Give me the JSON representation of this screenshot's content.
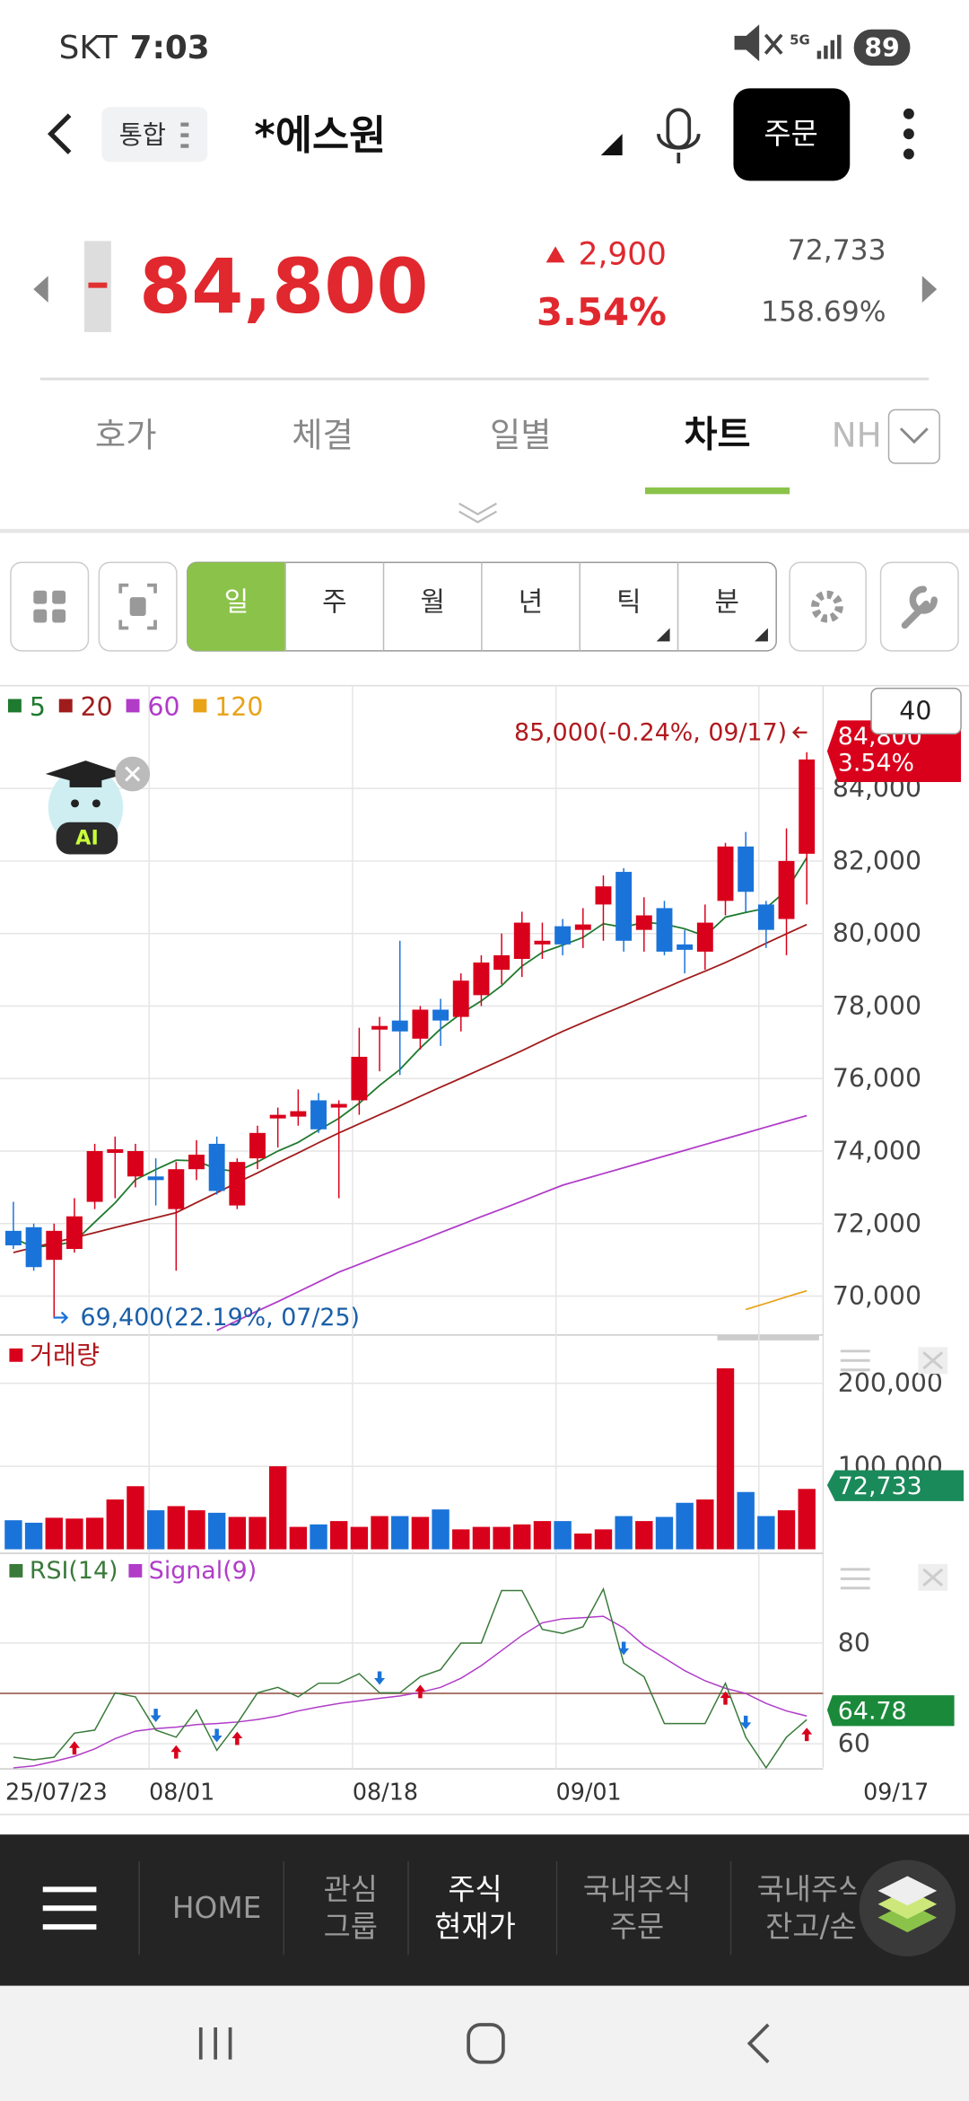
{
  "status_bar": {
    "carrier": "SKT",
    "time": "7:03",
    "network": "5G",
    "battery": "89"
  },
  "header": {
    "badge": "통합",
    "name": "*에스원",
    "order_button": "주문"
  },
  "price": {
    "current": "84,800",
    "change": "2,900",
    "change_pct": "3.54%",
    "volume": "72,733",
    "volume_ratio": "158.69%"
  },
  "tabs": [
    "호가",
    "체결",
    "일별",
    "차트",
    "NH"
  ],
  "periods": [
    "일",
    "주",
    "월",
    "년",
    "틱",
    "분"
  ],
  "chart_header": {
    "count": "40",
    "ma_legend": [
      "5",
      "20",
      "60",
      "120"
    ],
    "max_note": "85,000(-0.24%, 09/17)",
    "min_note": "69,400(22.19%, 07/25)",
    "ai_badge": "AI"
  },
  "price_chart": {
    "type": "candlestick",
    "ylim": [
      69000,
      86800
    ],
    "yticks": [
      {
        "value": 70000,
        "label": "70,000"
      },
      {
        "value": 72000,
        "label": "72,000"
      },
      {
        "value": 74000,
        "label": "74,000"
      },
      {
        "value": 76000,
        "label": "76,000"
      },
      {
        "value": 78000,
        "label": "78,000"
      },
      {
        "value": 80000,
        "label": "80,000"
      },
      {
        "value": 82000,
        "label": "82,000"
      },
      {
        "value": 84000,
        "label": "84,000"
      }
    ],
    "up_color": "#d9001b",
    "down_color": "#1a73d9",
    "open": [
      71800,
      71900,
      71000,
      71300,
      72600,
      73950,
      73300,
      73300,
      72400,
      73500,
      74200,
      72500,
      73800,
      74900,
      74950,
      75400,
      75200,
      75400,
      77350,
      77600,
      77100,
      77900,
      77700,
      78300,
      79000,
      79300,
      79700,
      80200,
      80100,
      80800,
      81700,
      80100,
      80700,
      79700,
      79500,
      80900,
      82400,
      80800,
      80400,
      82200
    ],
    "high": [
      72600,
      72000,
      72000,
      72700,
      74200,
      74400,
      74200,
      73800,
      73700,
      74300,
      74400,
      73800,
      74700,
      75200,
      75700,
      75600,
      75400,
      77400,
      77700,
      79800,
      78000,
      78200,
      78900,
      79400,
      80000,
      80600,
      80300,
      80400,
      80700,
      81600,
      81800,
      81000,
      80900,
      80100,
      80800,
      82500,
      82800,
      80900,
      82900,
      85000
    ],
    "low": [
      71300,
      70700,
      69400,
      71200,
      72400,
      72700,
      73000,
      72500,
      70700,
      73200,
      72800,
      72400,
      73500,
      74100,
      74700,
      74500,
      72700,
      75000,
      76200,
      76100,
      76800,
      76900,
      77300,
      78000,
      78600,
      78800,
      79300,
      79400,
      79600,
      79800,
      79500,
      79500,
      79400,
      78900,
      79000,
      80500,
      80600,
      79600,
      79400,
      80800
    ],
    "close": [
      71400,
      70800,
      71800,
      72200,
      74000,
      74050,
      74000,
      73200,
      73500,
      73900,
      72900,
      73700,
      74500,
      75000,
      75100,
      74600,
      75300,
      76600,
      77450,
      77300,
      77900,
      77600,
      78700,
      79200,
      79400,
      80300,
      79800,
      79700,
      80250,
      81300,
      79800,
      80500,
      79500,
      79550,
      80300,
      82400,
      81150,
      80100,
      82000,
      84800
    ],
    "ma": [
      {
        "name": "5",
        "color": "#1e7a2e",
        "values": [
          71600,
          71350,
          71400,
          71500,
          72040,
          72570,
          73210,
          73490,
          73750,
          73730,
          73500,
          73440,
          73700,
          74000,
          74240,
          74580,
          74900,
          75320,
          75810,
          76250,
          76840,
          77370,
          77790,
          78140,
          78560,
          79100,
          79480,
          79680,
          79890,
          80270,
          80170,
          80310,
          80260,
          80130,
          79930,
          80450,
          80580,
          80700,
          81190,
          82090
        ]
      },
      {
        "name": "20",
        "color": "#a01c1c",
        "values": [
          71200,
          71340,
          71480,
          71610,
          71750,
          71890,
          72030,
          72160,
          72300,
          72580,
          72850,
          73130,
          73400,
          73680,
          73950,
          74230,
          74500,
          74750,
          75000,
          75250,
          75510,
          75760,
          76010,
          76260,
          76510,
          76770,
          77040,
          77300,
          77540,
          77780,
          78010,
          78250,
          78490,
          78730,
          78960,
          79200,
          79460,
          79730,
          79990,
          80250
        ]
      },
      {
        "name": "60",
        "color": "#b03cc8",
        "values": [
          null,
          null,
          null,
          null,
          null,
          null,
          null,
          null,
          null,
          null,
          69050,
          69320,
          69590,
          69850,
          70120,
          70390,
          70660,
          70880,
          71100,
          71320,
          71530,
          71750,
          71970,
          72190,
          72400,
          72620,
          72840,
          73060,
          73220,
          73380,
          73540,
          73700,
          73860,
          74020,
          74180,
          74340,
          74500,
          74660,
          74820,
          74980
        ]
      },
      {
        "name": "120",
        "color": "#e8a317",
        "values": [
          null,
          null,
          null,
          null,
          null,
          null,
          null,
          null,
          null,
          null,
          null,
          null,
          null,
          null,
          null,
          null,
          null,
          null,
          null,
          null,
          null,
          null,
          null,
          null,
          null,
          null,
          null,
          null,
          null,
          null,
          null,
          null,
          null,
          null,
          null,
          null,
          69630,
          69800,
          69980,
          70150
        ]
      }
    ],
    "x_labels": [
      {
        "index": 0,
        "label": "25/07/23"
      },
      {
        "index": 7,
        "label": "08/01"
      },
      {
        "index": 17,
        "label": "08/18"
      },
      {
        "index": 27,
        "label": "09/01"
      },
      {
        "index": 39,
        "label": "09/17"
      }
    ]
  },
  "volume_chart": {
    "type": "bar",
    "title": "거래량",
    "ylim": [
      0,
      250000
    ],
    "yticks": [
      {
        "value": 100000,
        "label": "100,000"
      },
      {
        "value": 200000,
        "label": "200,000"
      }
    ],
    "values": [
      35000,
      32000,
      38000,
      37000,
      38000,
      60000,
      76000,
      47000,
      52000,
      47000,
      44000,
      39000,
      39000,
      100000,
      27000,
      30000,
      34000,
      27000,
      40000,
      40000,
      39000,
      48000,
      24000,
      27000,
      27000,
      30000,
      34000,
      34000,
      19000,
      24000,
      40000,
      34000,
      39000,
      56000,
      60000,
      218000,
      69000,
      40000,
      47000,
      72733
    ]
  },
  "rsi_chart": {
    "type": "line",
    "series_names": [
      "RSI(14)",
      "Signal(9)"
    ],
    "ylim": [
      55,
      97
    ],
    "yticks": [
      60,
      80
    ],
    "reference": 70,
    "rsi": [
      57.3,
      56.8,
      57.3,
      62.1,
      62.7,
      70.1,
      69.3,
      62.7,
      61.3,
      66.7,
      58.7,
      64,
      70.1,
      71.2,
      69.3,
      72,
      72,
      73.9,
      70.1,
      70.1,
      73.3,
      74.7,
      80,
      80,
      90.4,
      90.4,
      82.7,
      81.9,
      83.2,
      90.7,
      76,
      73.3,
      64,
      64,
      64,
      72,
      61.3,
      55.2,
      61.3,
      64.78
    ],
    "signal": [
      55.2,
      55.6,
      56.5,
      57.5,
      59,
      61,
      62.5,
      63,
      63.3,
      63.8,
      64,
      64.3,
      64.8,
      65.5,
      66.5,
      67.3,
      68,
      68.5,
      69,
      69.5,
      70.2,
      71.2,
      73,
      75.5,
      78.5,
      81.5,
      84,
      84.8,
      85,
      85.3,
      83,
      79.5,
      77,
      74.5,
      72.5,
      71,
      70,
      68,
      66.5,
      65.5
    ],
    "rsi_color": "#3a7a3a",
    "signal_color": "#b03cc8",
    "buy": [
      3,
      8,
      11,
      20,
      35,
      39
    ],
    "sell": [
      7,
      10,
      18,
      30,
      36
    ]
  },
  "bottom_nav": {
    "items": [
      [
        "HOME"
      ],
      [
        "관심",
        "그룹"
      ],
      [
        "주식",
        "현재가"
      ],
      [
        "국내주식",
        "주문"
      ],
      [
        "국내주식",
        "잔고/손"
      ]
    ]
  }
}
